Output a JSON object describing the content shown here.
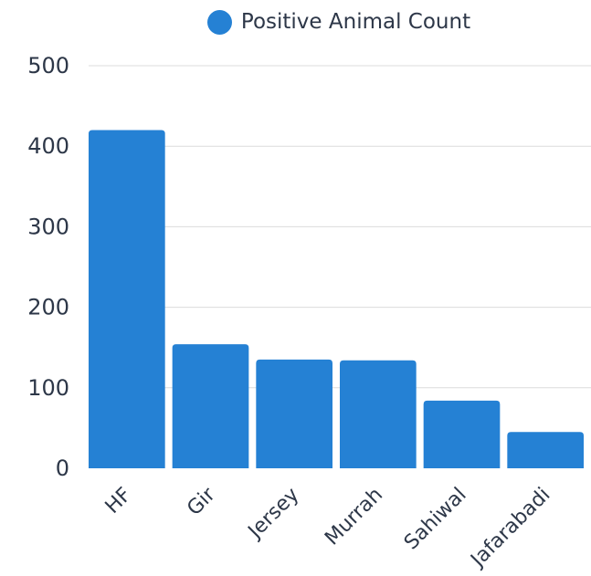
{
  "chart_data": {
    "type": "bar",
    "categories": [
      "HF",
      "Gir",
      "Jersey",
      "Murrah",
      "Sahiwal",
      "Jafarabadi"
    ],
    "series": [
      {
        "name": "Positive Animal Count",
        "values": [
          420,
          154,
          135,
          134,
          84,
          45
        ],
        "color": "#2581d4"
      }
    ],
    "ylim": [
      0,
      500
    ],
    "yticks": [
      "0",
      "100",
      "200",
      "300",
      "400",
      "500"
    ],
    "grid": true,
    "legend_position": "top-center"
  }
}
